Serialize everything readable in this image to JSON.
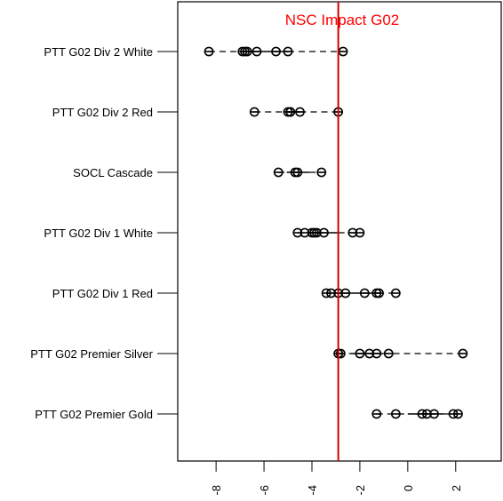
{
  "chart_data": {
    "type": "scatter",
    "title": "NSC Impact G02",
    "title_color": "#ff0000",
    "reference_line": {
      "x": -2.9,
      "color": "#cc0000"
    },
    "xlim": [
      -9.6,
      3.9
    ],
    "x_ticks": [
      -8,
      -6,
      -4,
      -2,
      0,
      2
    ],
    "x_tick_labels": [
      "-8",
      "-6",
      "-4",
      "-2",
      "0",
      "2"
    ],
    "xlabel": "",
    "ylabel": "",
    "grid": false,
    "legend": "none",
    "point_style": "open-circle-with-bar",
    "point_color": "#000000",
    "categories": [
      {
        "label": "PTT G02 Div 2 White",
        "values": [
          -8.3,
          -6.9,
          -6.8,
          -6.7,
          -6.3,
          -5.5,
          -5.0,
          -2.7
        ],
        "box": [
          -6.9,
          -5.0
        ],
        "whiskers": [
          -8.3,
          -2.7
        ]
      },
      {
        "label": "PTT G02 Div 2 Red",
        "values": [
          -6.4,
          -5.0,
          -4.9,
          -4.9,
          -4.5,
          -2.9
        ],
        "box": [
          -5.0,
          -4.5
        ],
        "whiskers": [
          -6.4,
          -2.9
        ]
      },
      {
        "label": "SOCL Cascade",
        "values": [
          -5.4,
          -4.7,
          -4.6,
          -3.6
        ],
        "box": [
          -5.05,
          -4.1
        ],
        "whiskers": [
          -5.4,
          -3.6
        ]
      },
      {
        "label": "PTT G02 Div 1 White",
        "values": [
          -4.6,
          -4.3,
          -4.0,
          -3.9,
          -3.8,
          -3.5,
          -2.3,
          -2.0
        ],
        "box": [
          -4.15,
          -2.9
        ],
        "whiskers": [
          -4.6,
          -2.0
        ]
      },
      {
        "label": "PTT G02 Div 1 Red",
        "values": [
          -3.4,
          -3.2,
          -2.9,
          -2.6,
          -1.8,
          -1.3,
          -1.2,
          -0.5
        ],
        "box": [
          -3.05,
          -1.25
        ],
        "whiskers": [
          -3.4,
          -0.5
        ]
      },
      {
        "label": "PTT G02 Premier Silver",
        "values": [
          -2.9,
          -2.8,
          -2.0,
          -1.6,
          -1.3,
          -0.8,
          2.3
        ],
        "box": [
          -2.4,
          -1.05
        ],
        "whiskers": [
          -2.9,
          2.3
        ]
      },
      {
        "label": "PTT G02 Premier Gold",
        "values": [
          -1.3,
          -0.5,
          0.6,
          0.8,
          1.1,
          1.9,
          2.1
        ],
        "box": [
          0.0,
          1.5
        ],
        "whiskers": [
          -1.3,
          2.1
        ]
      }
    ]
  }
}
